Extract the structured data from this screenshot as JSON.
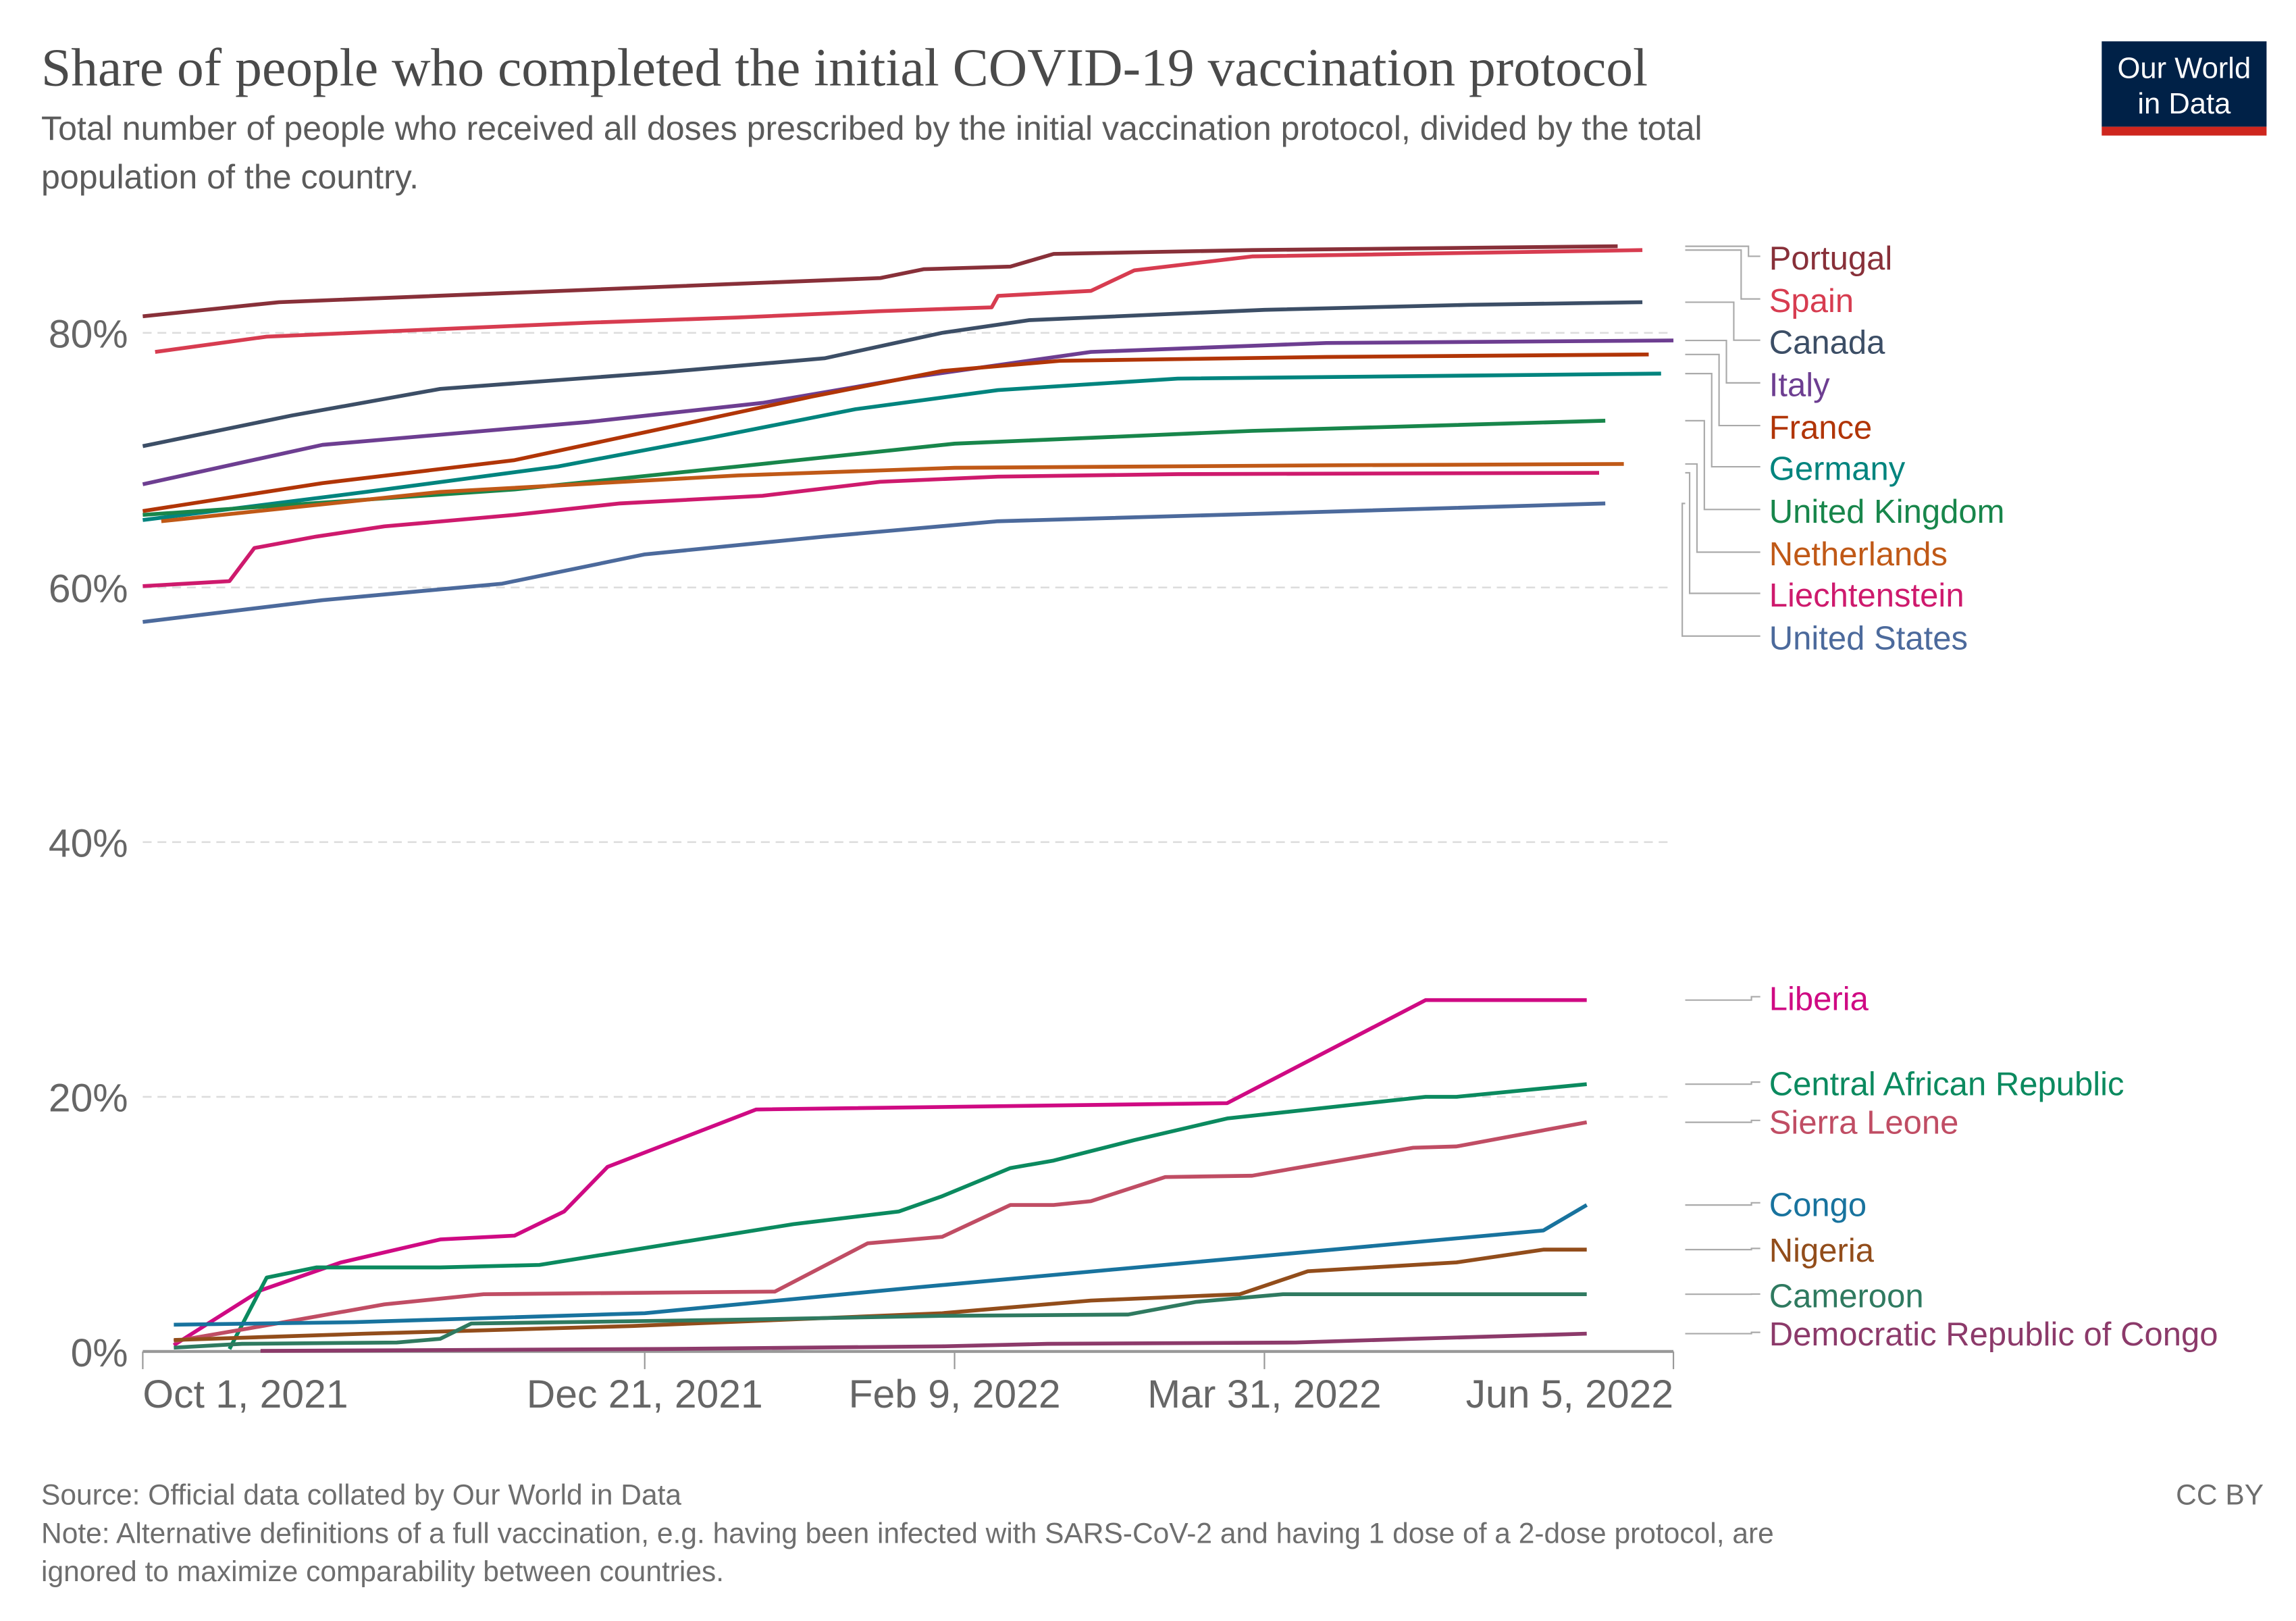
{
  "header": {
    "title": "Share of people who completed the initial COVID-19 vaccination protocol",
    "subtitle_line1": "Total number of people who received all doses prescribed by the initial vaccination protocol, divided by the total",
    "subtitle_line2": "population of the country.",
    "logo_line1": "Our World",
    "logo_line2": "in Data"
  },
  "footer": {
    "source": "Source: Official data collated by Our World in Data",
    "license": "CC BY",
    "note_line1": "Note: Alternative definitions of a full vaccination, e.g. having been infected with SARS-CoV-2 and having 1 dose of a 2-dose protocol, are",
    "note_line2": "ignored to maximize comparability between countries."
  },
  "colors": {
    "navy": "#002147",
    "red": "#ce261e",
    "grid": "#dddddd",
    "axis": "#999999"
  },
  "chart_data": {
    "type": "line",
    "title": "Share of people who completed the initial COVID-19 vaccination protocol",
    "xlabel": "",
    "ylabel": "",
    "x_unit": "days since Oct 1, 2021",
    "xlim": [
      0,
      247
    ],
    "ylim": [
      0,
      90
    ],
    "grid": true,
    "legend_placement": "right (direct labels)",
    "xticks": [
      {
        "x": 0,
        "label": "Oct 1, 2021"
      },
      {
        "x": 81,
        "label": "Dec 21, 2021"
      },
      {
        "x": 131,
        "label": "Feb 9, 2022"
      },
      {
        "x": 181,
        "label": "Mar 31, 2022"
      },
      {
        "x": 247,
        "label": "Jun 5, 2022"
      }
    ],
    "yticks": [
      {
        "y": 0,
        "label": "0%"
      },
      {
        "y": 20,
        "label": "20%"
      },
      {
        "y": 40,
        "label": "40%"
      },
      {
        "y": 60,
        "label": "60%"
      },
      {
        "y": 80,
        "label": "80%"
      }
    ],
    "series": [
      {
        "name": "Portugal",
        "color": "#883039",
        "x": [
          0,
          22,
          119,
          126,
          140,
          147,
          179,
          238
        ],
        "y": [
          81.3,
          82.4,
          84.3,
          85,
          85.2,
          86.2,
          86.5,
          86.8
        ]
      },
      {
        "name": "Spain",
        "color": "#d73c50",
        "x": [
          2,
          20,
          72,
          96,
          119,
          137,
          138,
          153,
          160,
          179,
          242
        ],
        "y": [
          78.5,
          79.7,
          80.8,
          81.2,
          81.7,
          82,
          82.9,
          83.3,
          84.9,
          86,
          86.5
        ]
      },
      {
        "name": "Canada",
        "color": "#3c4e66",
        "x": [
          0,
          24,
          48,
          84,
          110,
          129,
          143,
          181,
          214,
          242
        ],
        "y": [
          71.1,
          73.5,
          75.6,
          76.9,
          78,
          80,
          81,
          81.8,
          82.2,
          82.4
        ]
      },
      {
        "name": "Italy",
        "color": "#6d3e91",
        "x": [
          0,
          29,
          72,
          100,
          124,
          153,
          191,
          247
        ],
        "y": [
          68.1,
          71.2,
          73,
          74.5,
          76.5,
          78.5,
          79.2,
          79.4
        ]
      },
      {
        "name": "France",
        "color": "#b13507",
        "x": [
          0,
          29,
          60,
          84,
          108,
          129,
          148,
          191,
          243
        ],
        "y": [
          66,
          68.2,
          70,
          72.5,
          75,
          77,
          77.8,
          78.1,
          78.3
        ]
      },
      {
        "name": "Germany",
        "color": "#00847e",
        "x": [
          0,
          36,
          67,
          91,
          115,
          138,
          167,
          245
        ],
        "y": [
          65.3,
          67.5,
          69.5,
          71.7,
          74,
          75.5,
          76.4,
          76.8
        ]
      },
      {
        "name": "United Kingdom",
        "color": "#18864b",
        "x": [
          0,
          60,
          96,
          131,
          179,
          236
        ],
        "y": [
          65.7,
          67.7,
          69.5,
          71.3,
          72.3,
          73.1
        ]
      },
      {
        "name": "Netherlands",
        "color": "#c05917",
        "x": [
          3,
          48,
          96,
          131,
          191,
          239
        ],
        "y": [
          65.2,
          67.5,
          68.8,
          69.4,
          69.6,
          69.7
        ]
      },
      {
        "name": "Liechtenstein",
        "color": "#ce1a6d",
        "x": [
          0,
          14,
          18,
          28,
          39,
          60,
          77,
          100,
          119,
          138,
          167,
          235
        ],
        "y": [
          60.1,
          60.5,
          63.1,
          64,
          64.8,
          65.7,
          66.6,
          67.2,
          68.3,
          68.7,
          68.9,
          69
        ]
      },
      {
        "name": "United States",
        "color": "#4c6a9c",
        "x": [
          0,
          29,
          58,
          81,
          110,
          138,
          181,
          236
        ],
        "y": [
          57.3,
          59,
          60.3,
          62.6,
          64,
          65.2,
          65.8,
          66.6
        ]
      },
      {
        "name": "Liberia",
        "color": "#cf0a83",
        "x": [
          5,
          19,
          32,
          48,
          60,
          68,
          75,
          99,
          175,
          207,
          233
        ],
        "y": [
          0.5,
          4.8,
          7,
          8.8,
          9.1,
          11,
          14.5,
          19,
          19.5,
          27.6,
          27.6
        ]
      },
      {
        "name": "Central African Republic",
        "color": "#0b8a5f",
        "x": [
          14,
          20,
          28,
          48,
          64,
          105,
          122,
          129,
          140,
          147,
          160,
          175,
          207,
          212,
          233
        ],
        "y": [
          0.2,
          5.8,
          6.6,
          6.6,
          6.8,
          10,
          11,
          12.2,
          14.4,
          15,
          16.6,
          18.3,
          20,
          20,
          21
        ]
      },
      {
        "name": "Sierra Leone",
        "color": "#c04d64",
        "x": [
          5,
          17,
          39,
          55,
          102,
          117,
          129,
          140,
          147,
          153,
          165,
          179,
          205,
          212,
          233
        ],
        "y": [
          0.8,
          1.8,
          3.7,
          4.5,
          4.7,
          8.5,
          9,
          11.5,
          11.5,
          11.8,
          13.7,
          13.8,
          16,
          16.1,
          18
        ]
      },
      {
        "name": "Congo",
        "color": "#18739e",
        "x": [
          5,
          34,
          81,
          124,
          226,
          233
        ],
        "y": [
          2.1,
          2.3,
          3,
          5,
          9.5,
          11.5
        ]
      },
      {
        "name": "Nigeria",
        "color": "#924d1b",
        "x": [
          5,
          36,
          79,
          129,
          153,
          177,
          188,
          212,
          226,
          233
        ],
        "y": [
          0.9,
          1.4,
          2,
          3,
          4,
          4.5,
          6.3,
          7,
          8,
          8
        ]
      },
      {
        "name": "Cameroon",
        "color": "#2f7a60",
        "x": [
          5,
          16,
          41,
          48,
          53,
          96,
          129,
          159,
          170,
          184,
          233
        ],
        "y": [
          0.3,
          0.6,
          0.7,
          1,
          2.2,
          2.5,
          2.8,
          2.9,
          3.9,
          4.5,
          4.5
        ]
      },
      {
        "name": "Democratic Republic of Congo",
        "color": "#8c3a6a",
        "x": [
          19,
          84,
          129,
          146,
          186,
          205,
          233
        ],
        "y": [
          0.05,
          0.2,
          0.4,
          0.6,
          0.7,
          1,
          1.4
        ]
      }
    ]
  }
}
